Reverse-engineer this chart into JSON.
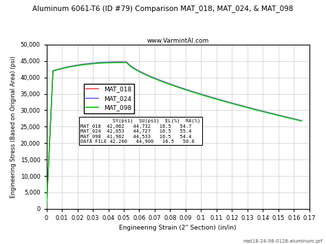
{
  "title": "Aluminum 6061-T6 (ID #79) Comparison MAT_018, MAT_024, & MAT_098",
  "subtitle": "www.VarmintAl.com",
  "xlabel": "Engineering Strain (2\" Section) (in/in)",
  "ylabel": "Engineering Stress (Based on Original Area) (psi)",
  "footer": "mat18-24-98-0128-aluminum.grf",
  "xlim": [
    0,
    0.17
  ],
  "ylim": [
    0,
    50000
  ],
  "yticks": [
    0,
    5000,
    10000,
    15000,
    20000,
    25000,
    30000,
    35000,
    40000,
    45000,
    50000
  ],
  "xticks": [
    0,
    0.01,
    0.02,
    0.03,
    0.04,
    0.05,
    0.06,
    0.07,
    0.08,
    0.09,
    0.1,
    0.11,
    0.12,
    0.13,
    0.14,
    0.15,
    0.16,
    0.17
  ],
  "series": [
    {
      "name": "MAT_018",
      "color": "#FF4444",
      "SY": 42062,
      "SU": 44732,
      "EL": 16.5,
      "RA": 54.7
    },
    {
      "name": "MAT_024",
      "color": "#6666FF",
      "SY": 42053,
      "SU": 44727,
      "EL": 16.5,
      "RA": 55.4
    },
    {
      "name": "MAT_098",
      "color": "#00CC00",
      "SY": 41962,
      "SU": 44533,
      "EL": 16.5,
      "RA": 54.4
    }
  ],
  "bg_color": "#FFFFFF",
  "grid_color": "#CCCCCC",
  "table_data": {
    "headers": [
      "",
      "SY(psi)",
      "SU(psi)",
      "EL(%)",
      "RA(%)"
    ],
    "rows": [
      [
        "MAT_018",
        "42,062",
        "44,732",
        "16.5",
        "54.7"
      ],
      [
        "MAT_024",
        "42,053",
        "44,727",
        "16.5",
        "55.4"
      ],
      [
        "MAT_098",
        "41,962",
        "44,533",
        "16.5",
        "54.4"
      ],
      [
        "DATA FILE",
        "42.200",
        "44,900",
        "16.5",
        "50.0"
      ]
    ]
  }
}
